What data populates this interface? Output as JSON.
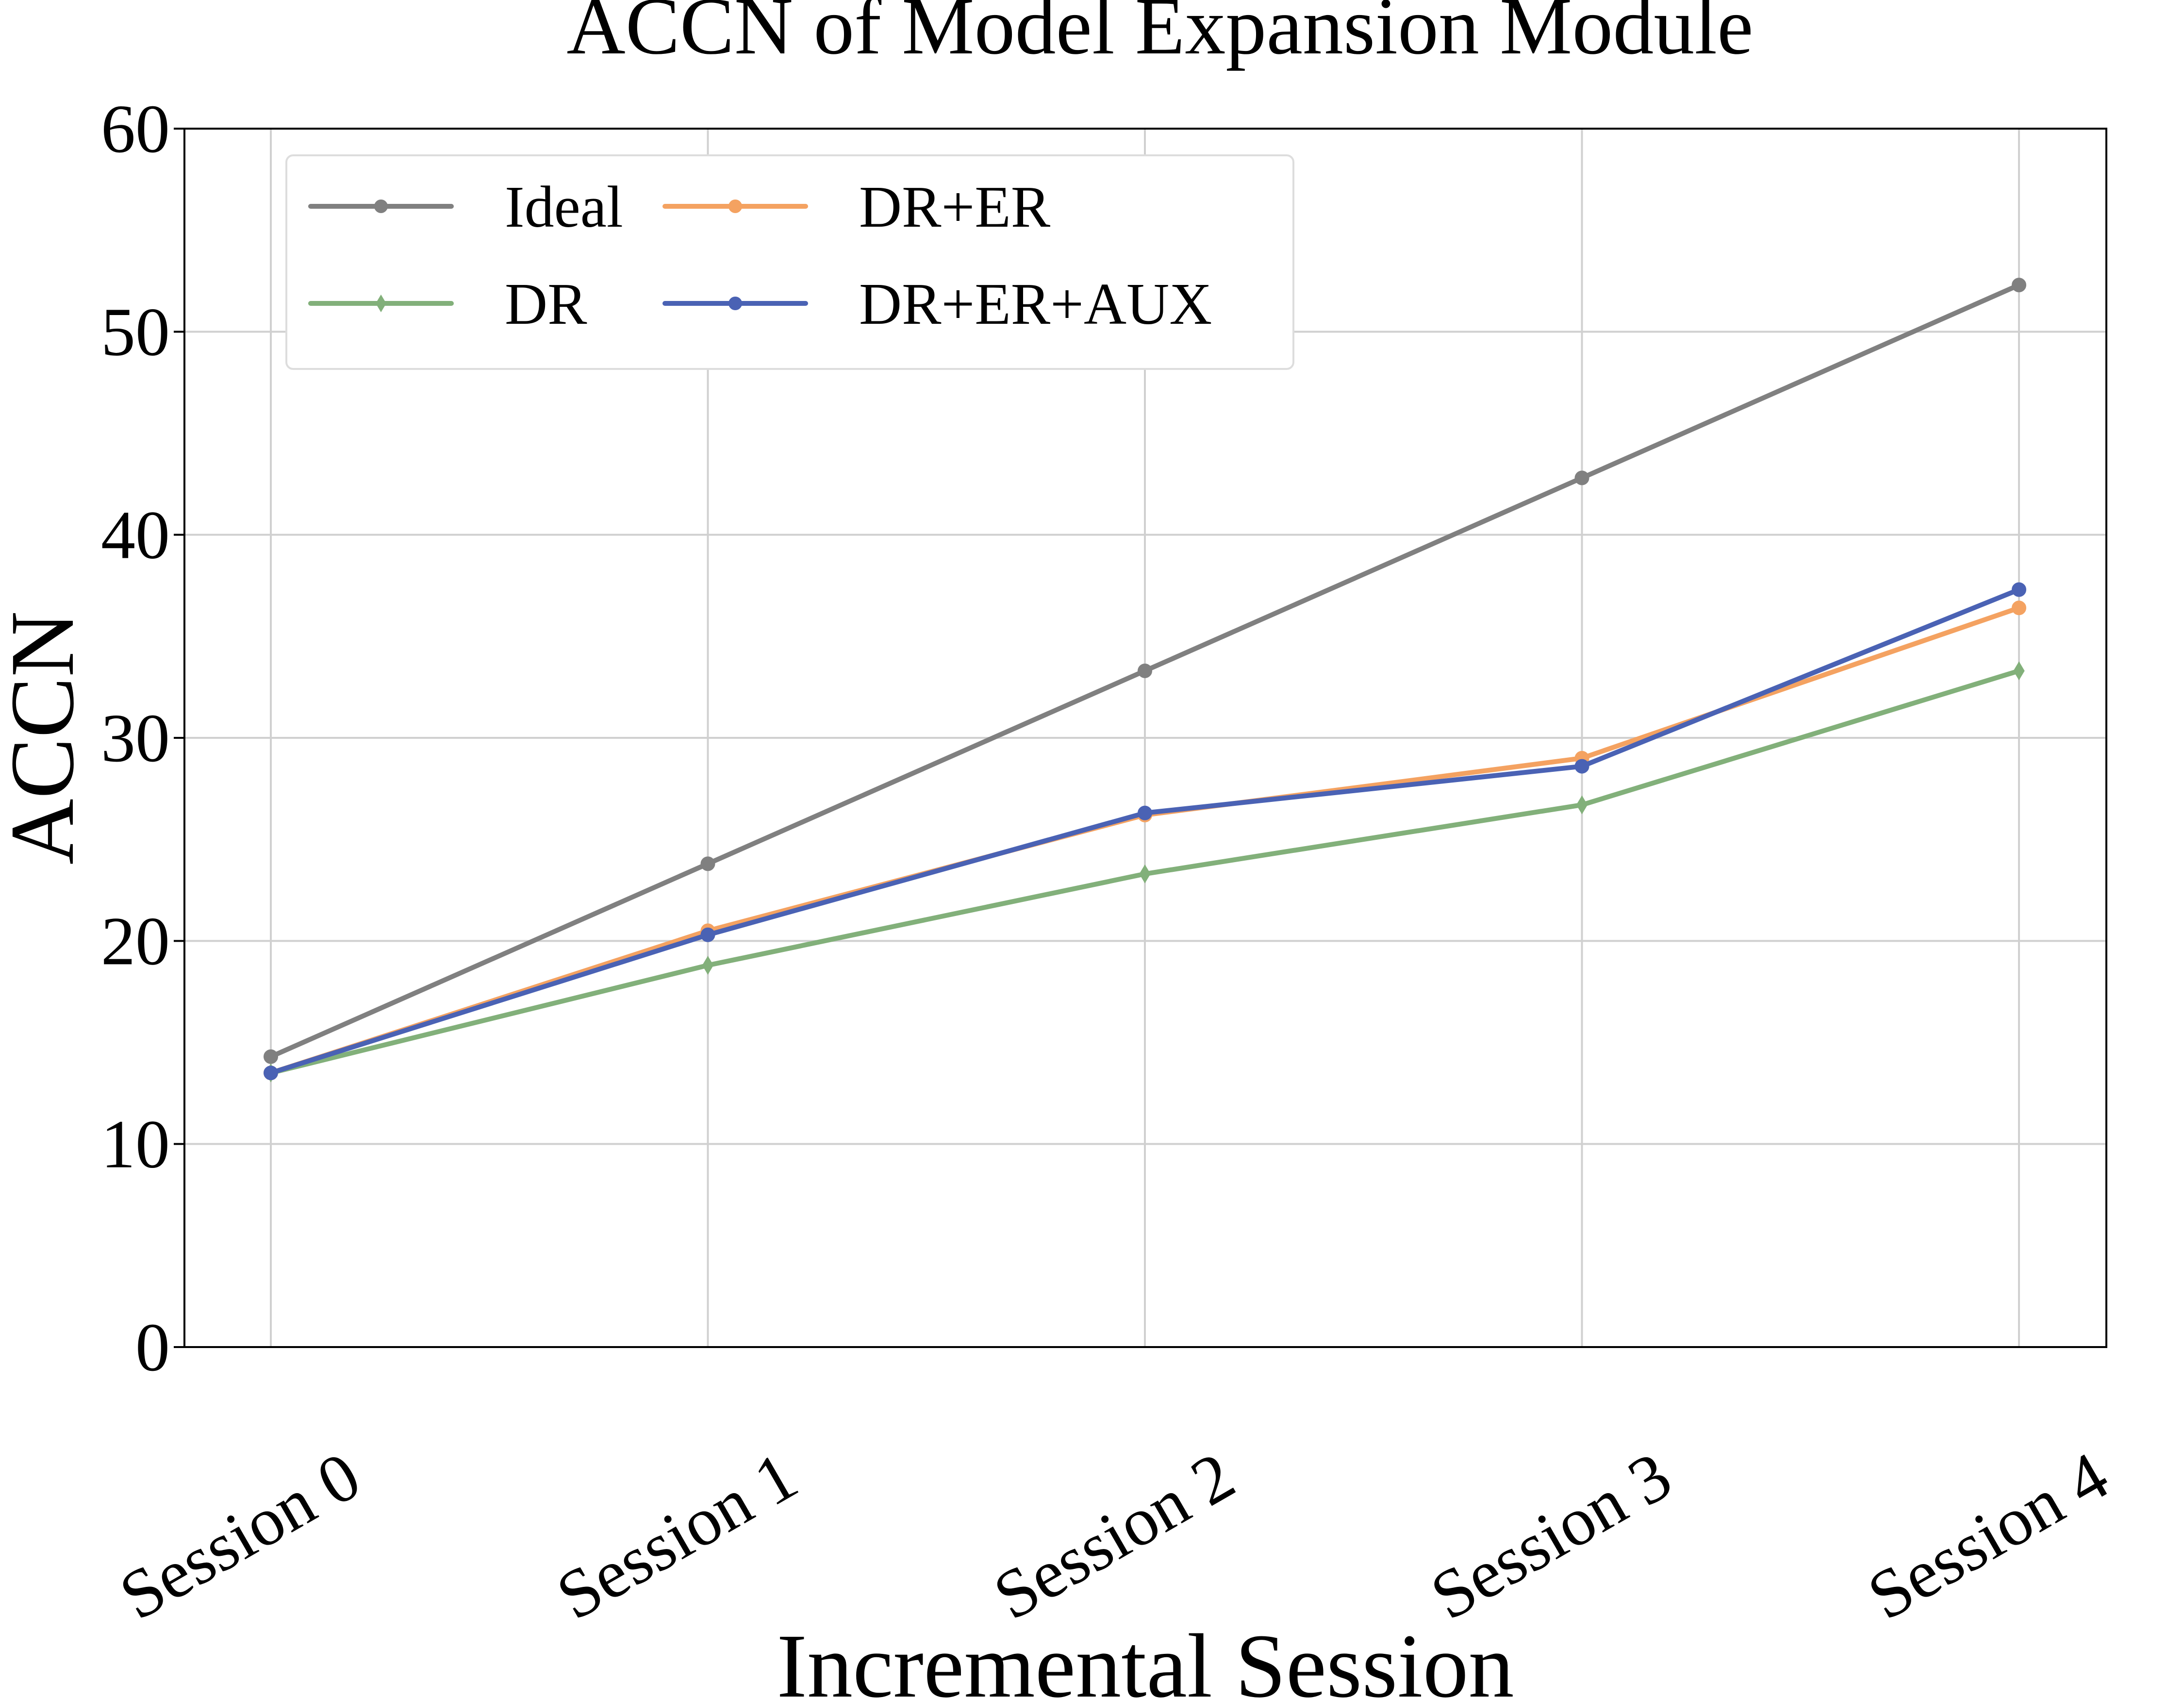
{
  "chart_data": {
    "type": "line",
    "title": "ACCN of Model Expansion Module",
    "xlabel": "Incremental Session",
    "ylabel": "ACCN",
    "categories": [
      "Session 0",
      "Session 1",
      "Session 2",
      "Session 3",
      "Session 4"
    ],
    "ylim": [
      0,
      60
    ],
    "yticks": [
      0,
      10,
      20,
      30,
      40,
      50,
      60
    ],
    "grid": true,
    "legend_position": "top-left",
    "series": [
      {
        "name": "Ideal",
        "color": "#808080",
        "marker": "circle",
        "values": [
          14.3,
          23.8,
          33.3,
          42.8,
          52.3
        ]
      },
      {
        "name": "DR+ER",
        "color": "#f4a261",
        "marker": "circle",
        "values": [
          13.5,
          20.5,
          26.2,
          29.0,
          36.4
        ]
      },
      {
        "name": "DR",
        "color": "#82b07a",
        "marker": "diamond",
        "values": [
          13.5,
          18.8,
          23.3,
          26.7,
          33.3
        ]
      },
      {
        "name": "DR+ER+AUX",
        "color": "#4a62b4",
        "marker": "circle",
        "values": [
          13.5,
          20.3,
          26.3,
          28.6,
          37.3
        ]
      }
    ]
  }
}
